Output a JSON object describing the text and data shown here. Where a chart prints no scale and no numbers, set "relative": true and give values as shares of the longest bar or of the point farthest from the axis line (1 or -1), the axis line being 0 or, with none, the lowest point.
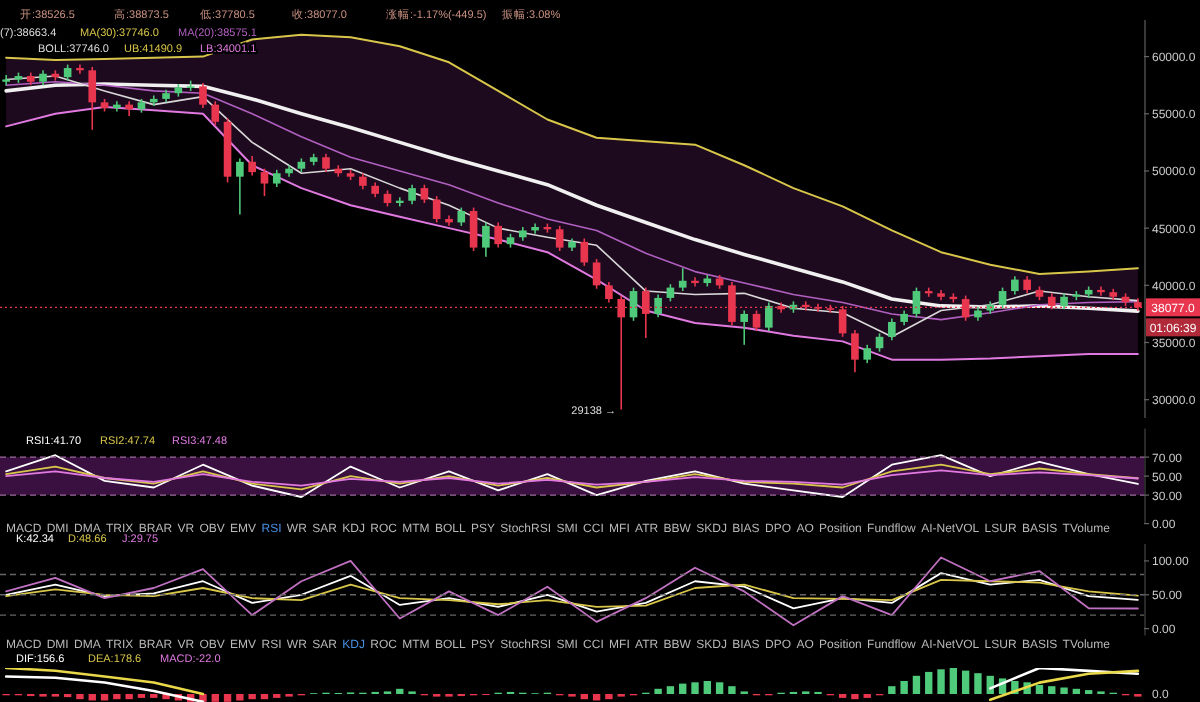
{
  "chart_data": [
    {
      "type": "candlestick",
      "categories": [
        null,
        null,
        null,
        null,
        null,
        null,
        null,
        null,
        null,
        null,
        null,
        null,
        null,
        null,
        null,
        null,
        null,
        null,
        null,
        null,
        null,
        null,
        null,
        null,
        null,
        null,
        null,
        null,
        null,
        null,
        null,
        null,
        null,
        null,
        null,
        null,
        null,
        null,
        null,
        null,
        null,
        null,
        null,
        null,
        null,
        null,
        null,
        null,
        null,
        null,
        null,
        null,
        null,
        null,
        null,
        null,
        null,
        null,
        null,
        null,
        null,
        null,
        null,
        null,
        null,
        null,
        null,
        null,
        null,
        null,
        null,
        null,
        null,
        null,
        null,
        null,
        null,
        null,
        null,
        null,
        null,
        null,
        null,
        null,
        null,
        null,
        null,
        null,
        null,
        null,
        null,
        null,
        null
      ],
      "ohlc": [
        [
          57800,
          58400,
          57500,
          58000
        ],
        [
          58000,
          58600,
          57700,
          58300
        ],
        [
          58300,
          58600,
          57500,
          57800
        ],
        [
          57800,
          58800,
          57500,
          58500
        ],
        [
          58500,
          58800,
          57900,
          58200
        ],
        [
          58200,
          59300,
          57900,
          59000
        ],
        [
          59000,
          59300,
          58500,
          58800
        ],
        [
          58800,
          59100,
          53600,
          56000
        ],
        [
          56000,
          56300,
          55200,
          55500
        ],
        [
          55500,
          56100,
          55200,
          55800
        ],
        [
          55800,
          56100,
          54800,
          55400
        ],
        [
          55400,
          56300,
          55100,
          56000
        ],
        [
          56000,
          56600,
          55700,
          56300
        ],
        [
          56300,
          57100,
          56000,
          56800
        ],
        [
          56800,
          57600,
          56500,
          57300
        ],
        [
          57300,
          57900,
          57000,
          57400
        ],
        [
          57400,
          57700,
          55500,
          55800
        ],
        [
          55800,
          56100,
          54000,
          54300
        ],
        [
          54300,
          54600,
          49000,
          49500
        ],
        [
          49500,
          51100,
          46200,
          50800
        ],
        [
          50800,
          51300,
          49600,
          49900
        ],
        [
          49900,
          50200,
          47800,
          48900
        ],
        [
          48900,
          50100,
          48600,
          49800
        ],
        [
          49800,
          50500,
          49500,
          50200
        ],
        [
          50200,
          51100,
          49900,
          50800
        ],
        [
          50800,
          51500,
          50500,
          51200
        ],
        [
          51200,
          51500,
          49900,
          50200
        ],
        [
          50200,
          50500,
          49500,
          49800
        ],
        [
          49800,
          50100,
          49200,
          49500
        ],
        [
          49500,
          49800,
          48400,
          48700
        ],
        [
          48700,
          49000,
          47700,
          48000
        ],
        [
          48000,
          48300,
          46900,
          47200
        ],
        [
          47200,
          47700,
          46900,
          47400
        ],
        [
          47400,
          48800,
          47100,
          48500
        ],
        [
          48500,
          48800,
          47200,
          47500
        ],
        [
          47500,
          47800,
          45500,
          45800
        ],
        [
          45800,
          46100,
          45200,
          45500
        ],
        [
          45500,
          46800,
          45200,
          46500
        ],
        [
          46500,
          46800,
          43000,
          43300
        ],
        [
          43300,
          45500,
          42500,
          45200
        ],
        [
          45200,
          45500,
          43300,
          43600
        ],
        [
          43600,
          44500,
          43300,
          44200
        ],
        [
          44200,
          45100,
          43900,
          44800
        ],
        [
          44800,
          45400,
          44500,
          45100
        ],
        [
          45100,
          45400,
          44600,
          44900
        ],
        [
          44900,
          45200,
          43000,
          43300
        ],
        [
          43300,
          44100,
          43000,
          43800
        ],
        [
          43800,
          44100,
          41700,
          42000
        ],
        [
          42000,
          42300,
          39700,
          40000
        ],
        [
          40000,
          40300,
          38500,
          38800
        ],
        [
          38800,
          39100,
          29138,
          37200
        ],
        [
          37200,
          39800,
          36900,
          39500
        ],
        [
          39500,
          39800,
          35400,
          37500
        ],
        [
          37500,
          39200,
          37200,
          38900
        ],
        [
          38900,
          40100,
          38600,
          39800
        ],
        [
          39800,
          41500,
          39500,
          40400
        ],
        [
          40400,
          40700,
          39900,
          40200
        ],
        [
          40200,
          40900,
          39900,
          40600
        ],
        [
          40600,
          40900,
          39700,
          40000
        ],
        [
          40000,
          40300,
          36500,
          36800
        ],
        [
          36800,
          37800,
          34800,
          37500
        ],
        [
          37500,
          37800,
          36000,
          36300
        ],
        [
          36300,
          38500,
          36000,
          38200
        ],
        [
          38200,
          38500,
          37600,
          37900
        ],
        [
          37900,
          38600,
          37600,
          38300
        ],
        [
          38300,
          38600,
          37800,
          38100
        ],
        [
          38100,
          38400,
          37700,
          38000
        ],
        [
          38000,
          38300,
          37600,
          37900
        ],
        [
          37900,
          38200,
          35500,
          35800
        ],
        [
          35800,
          36100,
          32400,
          33500
        ],
        [
          33500,
          34800,
          33200,
          34500
        ],
        [
          34500,
          35800,
          34200,
          35500
        ],
        [
          35500,
          37100,
          35200,
          36800
        ],
        [
          36800,
          37800,
          36500,
          37500
        ],
        [
          37500,
          39800,
          37200,
          39500
        ],
        [
          39500,
          39800,
          39000,
          39300
        ],
        [
          39300,
          39600,
          38700,
          39000
        ],
        [
          39000,
          39300,
          38500,
          38800
        ],
        [
          38800,
          39100,
          36900,
          37200
        ],
        [
          37200,
          38100,
          36900,
          37800
        ],
        [
          37800,
          38600,
          37500,
          38300
        ],
        [
          38300,
          39800,
          38000,
          39500
        ],
        [
          39500,
          40800,
          39200,
          40500
        ],
        [
          40500,
          40800,
          39300,
          39600
        ],
        [
          39600,
          39900,
          38700,
          39000
        ],
        [
          39000,
          39300,
          37900,
          38200
        ],
        [
          38200,
          39300,
          37900,
          39000
        ],
        [
          39000,
          39500,
          38700,
          39200
        ],
        [
          39200,
          39900,
          38900,
          39600
        ],
        [
          39600,
          39900,
          39100,
          39400
        ],
        [
          39400,
          39700,
          38700,
          39000
        ],
        [
          39000,
          39300,
          38200,
          38526.5
        ],
        [
          38526.5,
          38873.5,
          37780.5,
          38077
        ]
      ],
      "colors": [
        "#4fc97a",
        "#4fc97a",
        "#e8364f",
        "#4fc97a",
        "#e8364f",
        "#4fc97a",
        "#e8364f",
        "#e8364f",
        "#e8364f",
        "#4fc97a",
        "#e8364f",
        "#4fc97a",
        "#4fc97a",
        "#4fc97a",
        "#4fc97a",
        "#4fc97a",
        "#e8364f",
        "#e8364f",
        "#e8364f",
        "#4fc97a",
        "#e8364f",
        "#e8364f",
        "#4fc97a",
        "#4fc97a",
        "#4fc97a",
        "#4fc97a",
        "#e8364f",
        "#e8364f",
        "#e8364f",
        "#e8364f",
        "#e8364f",
        "#e8364f",
        "#4fc97a",
        "#4fc97a",
        "#e8364f",
        "#e8364f",
        "#e8364f",
        "#4fc97a",
        "#e8364f",
        "#4fc97a",
        "#e8364f",
        "#4fc97a",
        "#4fc97a",
        "#4fc97a",
        "#e8364f",
        "#e8364f",
        "#4fc97a",
        "#e8364f",
        "#e8364f",
        "#e8364f",
        "#e8364f",
        "#4fc97a",
        "#e8364f",
        "#4fc97a",
        "#4fc97a",
        "#4fc97a",
        "#e8364f",
        "#4fc97a",
        "#e8364f",
        "#e8364f",
        "#4fc97a",
        "#e8364f",
        "#4fc97a",
        "#e8364f",
        "#4fc97a",
        "#e8364f",
        "#e8364f",
        "#e8364f",
        "#e8364f",
        "#e8364f",
        "#4fc97a",
        "#4fc97a",
        "#4fc97a",
        "#4fc97a",
        "#4fc97a",
        "#e8364f",
        "#e8364f",
        "#e8364f",
        "#e8364f",
        "#4fc97a",
        "#4fc97a",
        "#4fc97a",
        "#4fc97a",
        "#e8364f",
        "#e8364f",
        "#e8364f",
        "#4fc97a",
        "#4fc97a",
        "#4fc97a",
        "#e8364f",
        "#e8364f",
        "#e8364f",
        "#e8364f"
      ],
      "ylim": [
        28400,
        63200
      ],
      "yticks": [
        {
          "value": 30000,
          "label": "30000.0"
        },
        {
          "value": 35000,
          "label": "35000.0"
        },
        {
          "value": 40000,
          "label": "40000.0"
        },
        {
          "value": 45000,
          "label": "45000.0"
        },
        {
          "value": 50000,
          "label": "50000.0"
        },
        {
          "value": 55000,
          "label": "55000.0"
        },
        {
          "value": 60000,
          "label": "60000.0"
        }
      ],
      "tick_labels": "y",
      "ref_lines": [
        {
          "axis": "y",
          "value": 38077.0,
          "label": "38077.0",
          "color": "#e8364f",
          "line_style": "dotted"
        }
      ],
      "annotations": [
        "开:38526.5",
        "高:38873.5",
        "低:37780.5",
        "收:38077.0",
        "涨幅:-1.17%(-449.5)",
        "振幅:3.08%",
        "(7):38663.4",
        "MA(30):37746.0",
        "MA(20):38575.1",
        "BOLL:37746.0",
        "UB:41490.9",
        "LB:34001.1",
        "29138 →",
        "01:06:39"
      ]
    },
    {
      "type": "line",
      "categories": [
        null,
        null,
        null,
        null,
        null,
        null,
        null,
        null,
        null,
        null,
        null,
        null,
        null,
        null,
        null,
        null,
        null,
        null,
        null,
        null,
        null,
        null,
        null,
        null
      ],
      "series": [
        {
          "color": "#d8c64a",
          "values": [
            59900,
            59700,
            59800,
            59900,
            60000,
            61500,
            61900,
            61700,
            60900,
            59500,
            57000,
            54500,
            52900,
            52600,
            52300,
            50500,
            48500,
            46900,
            44800,
            42900,
            41800,
            41000,
            41200,
            41490.9
          ]
        },
        {
          "color": "#f0f0f0",
          "values": [
            57000,
            57500,
            57600,
            57500,
            57400,
            56300,
            55000,
            53800,
            52500,
            51200,
            50000,
            48800,
            47000,
            45500,
            44000,
            42700,
            41500,
            40300,
            38800,
            38200,
            38100,
            38200,
            38000,
            37746.0
          ],
          "lower": [
            53900,
            55000,
            55600,
            55300,
            55000,
            50500,
            48500,
            47000,
            46000,
            45000,
            44000,
            42900,
            40500,
            37800,
            36700,
            36300,
            35600,
            35100,
            33500,
            33500,
            33600,
            33800,
            34000,
            34001.1
          ],
          "upper": [
            59900,
            59700,
            59800,
            59900,
            60000,
            61500,
            61900,
            61700,
            60900,
            59500,
            57000,
            54500,
            52900,
            52600,
            52300,
            50500,
            48500,
            46900,
            44800,
            42900,
            41800,
            41000,
            41200,
            41490.9
          ]
        },
        {
          "color": "#b060c0",
          "values": [
            57500,
            57800,
            57500,
            57000,
            56800,
            55000,
            53000,
            51200,
            50000,
            48800,
            47200,
            45800,
            44800,
            42800,
            41200,
            40200,
            39200,
            38500,
            37500,
            37000,
            37600,
            38300,
            38500,
            38575.1
          ]
        },
        {
          "color": "#d8d8d8",
          "values": [
            58000,
            58300,
            57000,
            55800,
            56500,
            52500,
            49800,
            50200,
            48500,
            47000,
            45000,
            44200,
            43500,
            39500,
            39200,
            39300,
            38000,
            37600,
            35500,
            37800,
            38300,
            39500,
            39000,
            38663.4
          ]
        },
        {
          "color": "#e07ae0",
          "values": [
            53900,
            55000,
            55600,
            55300,
            55000,
            50500,
            48500,
            47000,
            46000,
            45000,
            44000,
            42900,
            40500,
            37800,
            36700,
            36300,
            35600,
            35100,
            33500,
            33500,
            33600,
            33800,
            34000,
            34001.1
          ]
        }
      ],
      "ylim": [
        28400,
        63200
      ],
      "tick_labels": false
    },
    {
      "type": "line",
      "categories": [
        null,
        null,
        null,
        null,
        null,
        null,
        null,
        null,
        null,
        null,
        null,
        null,
        null,
        null,
        null,
        null,
        null,
        null,
        null,
        null,
        null,
        null,
        null,
        null
      ],
      "series": [
        {
          "color": "#ffffff",
          "values": [
            55,
            72,
            45,
            38,
            62,
            40,
            28,
            60,
            38,
            55,
            35,
            52,
            30,
            45,
            55,
            42,
            35,
            28,
            62,
            72,
            50,
            65,
            52,
            41.7
          ]
        },
        {
          "color": "#d8c64a",
          "values": [
            52,
            60,
            48,
            42,
            55,
            42,
            36,
            50,
            42,
            50,
            40,
            48,
            38,
            44,
            52,
            44,
            42,
            38,
            55,
            62,
            52,
            58,
            52,
            47.74
          ]
        },
        {
          "color": "#e07ae0",
          "values": [
            50,
            55,
            48,
            44,
            52,
            44,
            40,
            47,
            44,
            48,
            42,
            46,
            41,
            44,
            49,
            45,
            44,
            41,
            51,
            56,
            51,
            54,
            51,
            47.48
          ]
        }
      ],
      "ylim": [
        0,
        100
      ],
      "yticks": [
        {
          "value": 0,
          "label": "0.00"
        },
        {
          "value": 30,
          "label": "30.00"
        },
        {
          "value": 50,
          "label": "50.00"
        },
        {
          "value": 70,
          "label": "70.00"
        }
      ],
      "tick_labels": "y",
      "bands": [
        {
          "axis": "y",
          "from": 30,
          "to": 70,
          "color": "#3a1040"
        }
      ],
      "ref_lines": [
        {
          "axis": "y",
          "value": 70,
          "color": "#9a6a9a",
          "line_style": "dashed"
        },
        {
          "axis": "y",
          "value": 30,
          "color": "#9a6a9a",
          "line_style": "dashed"
        }
      ],
      "annotations": [
        "RSI1:41.70",
        "RSI2:47.74",
        "RSI3:47.48",
        "MACD DMI DMA TRIX BRAR VR OBV EMV RSI WR SAR KDJ ROC MTM BOLL PSY StochRSI SMI CCI MFI ATR BBW SKDJ BIAS DPO AO Position Fundflow AI-NetVOL LSUR BASIS TVolume"
      ]
    },
    {
      "type": "line",
      "categories": [
        null,
        null,
        null,
        null,
        null,
        null,
        null,
        null,
        null,
        null,
        null,
        null,
        null,
        null,
        null,
        null,
        null,
        null,
        null,
        null,
        null,
        null,
        null,
        null
      ],
      "series": [
        {
          "color": "#ffffff",
          "values": [
            50,
            65,
            48,
            52,
            70,
            38,
            50,
            78,
            35,
            45,
            32,
            50,
            25,
            38,
            70,
            62,
            30,
            45,
            38,
            82,
            65,
            72,
            48,
            42.34
          ]
        },
        {
          "color": "#d8c64a",
          "values": [
            48,
            58,
            50,
            48,
            60,
            45,
            42,
            65,
            45,
            42,
            36,
            42,
            32,
            34,
            60,
            65,
            45,
            44,
            42,
            72,
            70,
            68,
            55,
            48.66
          ]
        },
        {
          "color": "#c070c0",
          "values": [
            55,
            75,
            45,
            60,
            88,
            20,
            70,
            100,
            15,
            55,
            20,
            62,
            10,
            45,
            90,
            55,
            5,
            48,
            20,
            105,
            70,
            85,
            30,
            29.75
          ]
        }
      ],
      "ylim": [
        -10,
        125
      ],
      "yticks": [
        {
          "value": 0,
          "label": "0.00"
        },
        {
          "value": 50,
          "label": "50.00"
        },
        {
          "value": 100,
          "label": "100.00"
        }
      ],
      "tick_labels": "y",
      "ref_lines": [
        {
          "axis": "y",
          "value": 80,
          "color": "#666666",
          "line_style": "dashed"
        },
        {
          "axis": "y",
          "value": 50,
          "color": "#666666",
          "line_style": "dashed"
        },
        {
          "axis": "y",
          "value": 20,
          "color": "#666666",
          "line_style": "dashed"
        }
      ],
      "annotations": [
        "K:42.34",
        "D:48.66",
        "J:29.75",
        "MACD DMI DMA TRIX BRAR VR OBV EMV RSI WR SAR KDJ ROC MTM BOLL PSY StochRSI SMI CCI MFI ATR BBW SKDJ BIAS DPO AO Position Fundflow AI-NetVOL LSUR BASIS TVolume"
      ]
    },
    {
      "type": "bar",
      "relative": true,
      "categories": [
        null,
        null,
        null,
        null,
        null,
        null,
        null,
        null,
        null,
        null,
        null,
        null,
        null,
        null,
        null,
        null,
        null,
        null,
        null,
        null,
        null,
        null,
        null,
        null,
        null,
        null,
        null,
        null,
        null,
        null,
        null,
        null,
        null,
        null,
        null,
        null,
        null,
        null,
        null,
        null,
        null,
        null,
        null,
        null,
        null,
        null,
        null,
        null,
        null,
        null,
        null,
        null,
        null,
        null,
        null,
        null,
        null,
        null,
        null,
        null,
        null,
        null,
        null,
        null,
        null,
        null,
        null,
        null,
        null,
        null,
        null,
        null,
        null,
        null,
        null,
        null,
        null,
        null,
        null,
        null,
        null,
        null,
        null,
        null,
        null,
        null,
        null,
        null,
        null,
        null,
        null,
        null,
        null
      ],
      "values": [
        -0.05,
        -0.05,
        -0.08,
        -0.1,
        -0.1,
        -0.12,
        -0.2,
        -0.25,
        -0.25,
        -0.2,
        -0.2,
        -0.15,
        -0.15,
        -0.2,
        -0.25,
        -0.3,
        -0.3,
        -0.3,
        -0.3,
        -0.25,
        -0.2,
        -0.2,
        -0.15,
        -0.1,
        -0.05,
        0.03,
        0.05,
        0.04,
        0.06,
        0.05,
        0.08,
        0.1,
        0.2,
        0.1,
        -0.05,
        -0.1,
        -0.1,
        -0.08,
        -0.05,
        -0.04,
        0.05,
        0.08,
        0.05,
        0.03,
        0.05,
        -0.05,
        -0.1,
        -0.2,
        -0.25,
        -0.2,
        -0.1,
        -0.05,
        0.05,
        0.2,
        0.3,
        0.4,
        0.45,
        0.5,
        0.45,
        0.3,
        0.1,
        -0.05,
        -0.05,
        0.05,
        0.08,
        0.1,
        0.08,
        -0.05,
        -0.15,
        -0.2,
        -0.15,
        -0.05,
        0.3,
        0.5,
        0.7,
        0.85,
        0.95,
        1,
        0.9,
        0.8,
        0.7,
        0.6,
        0.5,
        0.45,
        0.35,
        0.3,
        0.25,
        0.2,
        0.15,
        0.1,
        0.05,
        -0.05,
        -0.1
      ],
      "colors": [
        "#e8364f",
        "#e8364f",
        "#e8364f",
        "#e8364f",
        "#e8364f",
        "#e8364f",
        "#e8364f",
        "#e8364f",
        "#e8364f",
        "#e8364f",
        "#e8364f",
        "#e8364f",
        "#e8364f",
        "#e8364f",
        "#e8364f",
        "#e8364f",
        "#e8364f",
        "#e8364f",
        "#e8364f",
        "#e8364f",
        "#e8364f",
        "#e8364f",
        "#e8364f",
        "#e8364f",
        "#e8364f",
        "#4fc97a",
        "#4fc97a",
        "#4fc97a",
        "#4fc97a",
        "#4fc97a",
        "#4fc97a",
        "#4fc97a",
        "#4fc97a",
        "#4fc97a",
        "#e8364f",
        "#e8364f",
        "#e8364f",
        "#e8364f",
        "#e8364f",
        "#e8364f",
        "#4fc97a",
        "#4fc97a",
        "#4fc97a",
        "#4fc97a",
        "#4fc97a",
        "#e8364f",
        "#e8364f",
        "#e8364f",
        "#e8364f",
        "#e8364f",
        "#e8364f",
        "#e8364f",
        "#4fc97a",
        "#4fc97a",
        "#4fc97a",
        "#4fc97a",
        "#4fc97a",
        "#4fc97a",
        "#4fc97a",
        "#4fc97a",
        "#4fc97a",
        "#e8364f",
        "#e8364f",
        "#4fc97a",
        "#4fc97a",
        "#4fc97a",
        "#4fc97a",
        "#e8364f",
        "#e8364f",
        "#e8364f",
        "#e8364f",
        "#e8364f",
        "#4fc97a",
        "#4fc97a",
        "#4fc97a",
        "#4fc97a",
        "#4fc97a",
        "#4fc97a",
        "#4fc97a",
        "#4fc97a",
        "#4fc97a",
        "#4fc97a",
        "#4fc97a",
        "#4fc97a",
        "#4fc97a",
        "#4fc97a",
        "#4fc97a",
        "#4fc97a",
        "#4fc97a",
        "#4fc97a",
        "#4fc97a",
        "#e8364f",
        "#e8364f"
      ],
      "annotations": [
        "DIF:156.6",
        "DEA:178.6",
        "MACD:-22.0",
        "0.0"
      ]
    },
    {
      "type": "line",
      "relative": true,
      "categories": [
        null,
        null,
        null,
        null,
        null
      ],
      "series": [
        {
          "color": "#ffffff",
          "values": [
            0.75,
            0.71,
            0.57,
            0.32,
            0
          ]
        },
        {
          "color": "#e8d84a",
          "values": [
            1,
            0.92,
            0.75,
            0.57,
            0.23
          ]
        }
      ]
    },
    {
      "type": "line",
      "relative": true,
      "categories": [
        null,
        null,
        null,
        null
      ],
      "series": [
        {
          "color": "#ffffff",
          "values": [
            0.36,
            1,
            0.91,
            0.82
          ]
        },
        {
          "color": "#e8d84a",
          "values": [
            0,
            0.54,
            0.82,
            0.91
          ]
        }
      ]
    }
  ]
}
